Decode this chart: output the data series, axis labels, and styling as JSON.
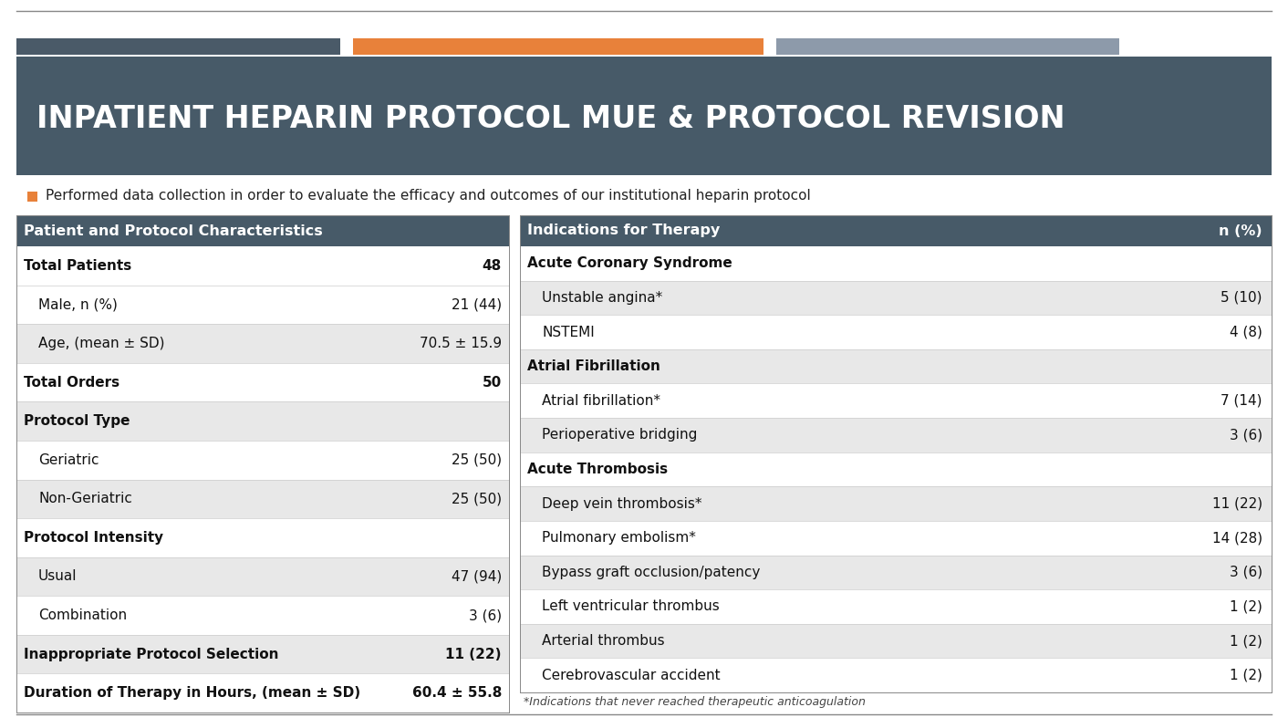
{
  "title": "INPATIENT HEPARIN PROTOCOL MUE & PROTOCOL REVISION",
  "subtitle": "Performed data collection in order to evaluate the efficacy and outcomes of our institutional heparin protocol",
  "header_bar_colors": [
    "#4a5a68",
    "#e8813a",
    "#8d9aaa"
  ],
  "header_bg": "#475a68",
  "title_color": "#ffffff",
  "bullet_color": "#e8813a",
  "table_header_bg": "#475a68",
  "table_header_text": "#ffffff",
  "row_shaded_bg": "#e8e8e8",
  "row_plain_bg": "#ffffff",
  "left_table_header": "Patient and Protocol Characteristics",
  "right_table_header_col1": "Indications for Therapy",
  "right_table_header_col2": "n (%)",
  "left_rows": [
    {
      "label": "Total Patients",
      "value": "48",
      "bold": true,
      "indent": false,
      "shaded": false
    },
    {
      "label": "Male, n (%)",
      "value": "21 (44)",
      "bold": false,
      "indent": true,
      "shaded": false
    },
    {
      "label": "Age, (mean ± SD)",
      "value": "70.5 ± 15.9",
      "bold": false,
      "indent": true,
      "shaded": true
    },
    {
      "label": "Total Orders",
      "value": "50",
      "bold": true,
      "indent": false,
      "shaded": false
    },
    {
      "label": "Protocol Type",
      "value": "",
      "bold": true,
      "indent": false,
      "shaded": true
    },
    {
      "label": "Geriatric",
      "value": "25 (50)",
      "bold": false,
      "indent": true,
      "shaded": false
    },
    {
      "label": "Non-Geriatric",
      "value": "25 (50)",
      "bold": false,
      "indent": true,
      "shaded": true
    },
    {
      "label": "Protocol Intensity",
      "value": "",
      "bold": true,
      "indent": false,
      "shaded": false
    },
    {
      "label": "Usual",
      "value": "47 (94)",
      "bold": false,
      "indent": true,
      "shaded": true
    },
    {
      "label": "Combination",
      "value": "3 (6)",
      "bold": false,
      "indent": true,
      "shaded": false
    },
    {
      "label": "Inappropriate Protocol Selection",
      "value": "11 (22)",
      "bold": true,
      "indent": false,
      "shaded": true
    },
    {
      "label": "Duration of Therapy in Hours, (mean ± SD)",
      "value": "60.4 ± 55.8",
      "bold": true,
      "indent": false,
      "shaded": false
    }
  ],
  "right_rows": [
    {
      "label": "Acute Coronary Syndrome",
      "value": "",
      "bold": true,
      "indent": false,
      "shaded": false
    },
    {
      "label": "Unstable angina*",
      "value": "5 (10)",
      "bold": false,
      "indent": true,
      "shaded": true
    },
    {
      "label": "NSTEMI",
      "value": "4 (8)",
      "bold": false,
      "indent": true,
      "shaded": false
    },
    {
      "label": "Atrial Fibrillation",
      "value": "",
      "bold": true,
      "indent": false,
      "shaded": true
    },
    {
      "label": "Atrial fibrillation*",
      "value": "7 (14)",
      "bold": false,
      "indent": true,
      "shaded": false
    },
    {
      "label": "Perioperative bridging",
      "value": "3 (6)",
      "bold": false,
      "indent": true,
      "shaded": true
    },
    {
      "label": "Acute Thrombosis",
      "value": "",
      "bold": true,
      "indent": false,
      "shaded": false
    },
    {
      "label": "Deep vein thrombosis*",
      "value": "11 (22)",
      "bold": false,
      "indent": true,
      "shaded": true
    },
    {
      "label": "Pulmonary embolism*",
      "value": "14 (28)",
      "bold": false,
      "indent": true,
      "shaded": false
    },
    {
      "label": "Bypass graft occlusion/patency",
      "value": "3 (6)",
      "bold": false,
      "indent": true,
      "shaded": true
    },
    {
      "label": "Left ventricular thrombus",
      "value": "1 (2)",
      "bold": false,
      "indent": true,
      "shaded": false
    },
    {
      "label": "Arterial thrombus",
      "value": "1 (2)",
      "bold": false,
      "indent": true,
      "shaded": true
    },
    {
      "label": "Cerebrovascular accident",
      "value": "1 (2)",
      "bold": false,
      "indent": true,
      "shaded": false
    }
  ],
  "footnote": "*Indications that never reached therapeutic anticoagulation",
  "bg_color": "#ffffff"
}
